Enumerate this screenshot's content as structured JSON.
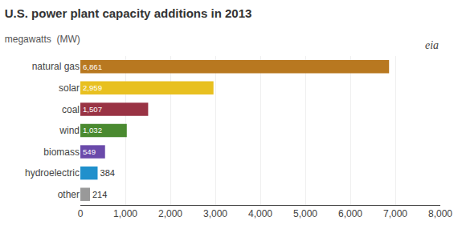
{
  "chart_data": {
    "type": "bar",
    "orientation": "horizontal",
    "title": "U.S. power plant capacity additions in 2013",
    "subtitle": "megawatts  (MW)",
    "annotations": [
      "eia"
    ],
    "categories": [
      "natural gas",
      "solar",
      "coal",
      "wind",
      "biomass",
      "hydroelectric",
      "other"
    ],
    "values": [
      6861,
      2959,
      1507,
      1032,
      549,
      384,
      214
    ],
    "value_labels": [
      "6,861",
      "2,959",
      "1,507",
      "1,032",
      "549",
      "384",
      "214"
    ],
    "data_labels": true,
    "colors": [
      "#b87820",
      "#e8c020",
      "#993344",
      "#4a8a30",
      "#6a4aaa",
      "#2090cc",
      "#999999"
    ],
    "xlim": [
      0,
      8000
    ],
    "xticks": [
      0,
      {
        "value": 1000,
        "label": "1,000"
      },
      {
        "value": 2000,
        "label": "2,000"
      },
      {
        "value": 3000,
        "label": "3,000"
      },
      {
        "value": 4000,
        "label": "4,000"
      },
      {
        "value": 5000,
        "label": "5,000"
      },
      {
        "value": 6000,
        "label": "6,000"
      },
      {
        "value": 7000,
        "label": "7,000"
      },
      {
        "value": 8000,
        "label": "8,000"
      }
    ],
    "grid": true
  }
}
